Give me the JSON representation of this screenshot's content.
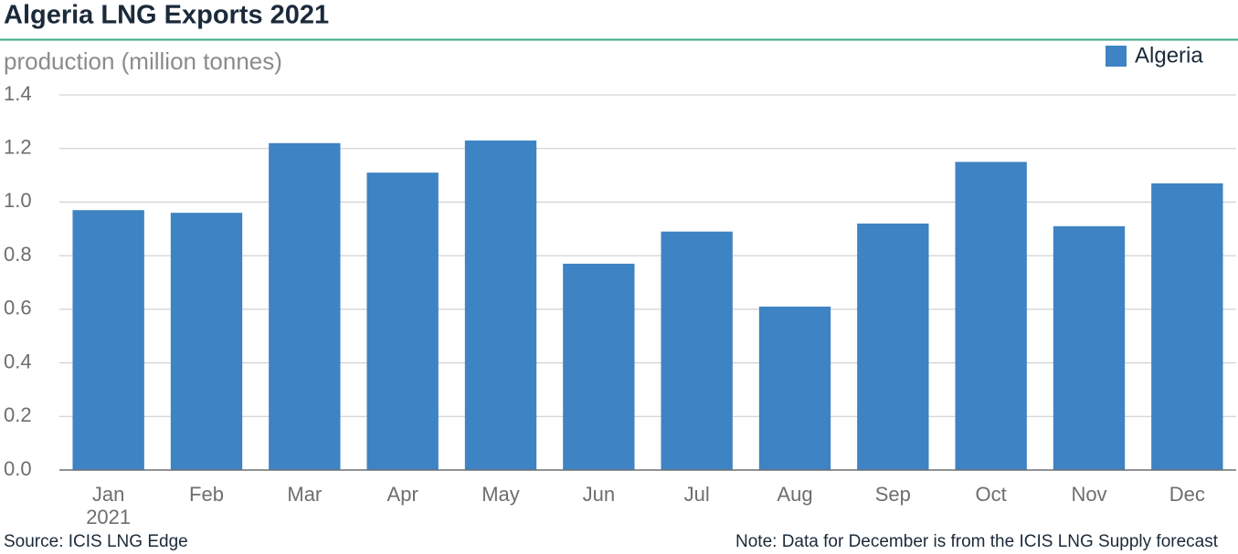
{
  "chart_data": {
    "type": "bar",
    "title": "Algeria LNG Exports 2021",
    "y_label": "production (million tonnes)",
    "categories": [
      "Jan\n2021",
      "Feb",
      "Mar",
      "Apr",
      "May",
      "Jun",
      "Jul",
      "Aug",
      "Sep",
      "Oct",
      "Nov",
      "Dec"
    ],
    "series": [
      {
        "name": "Algeria",
        "color": "#3e83c3",
        "values": [
          0.97,
          0.96,
          1.22,
          1.11,
          1.23,
          0.77,
          0.89,
          0.61,
          0.92,
          1.15,
          0.91,
          1.07
        ]
      }
    ],
    "ylim": [
      0,
      1.4
    ],
    "yticks": [
      {
        "value": 0,
        "label": "0.0"
      },
      0.2,
      0.4,
      0.6,
      0.8,
      {
        "value": 1,
        "label": "1.0"
      },
      1.2,
      1.4
    ],
    "grid": true,
    "legend": "top-right",
    "source": "Source: ICIS LNG Edge",
    "note": "Note: Data for December is from the ICIS LNG Supply forecast"
  }
}
